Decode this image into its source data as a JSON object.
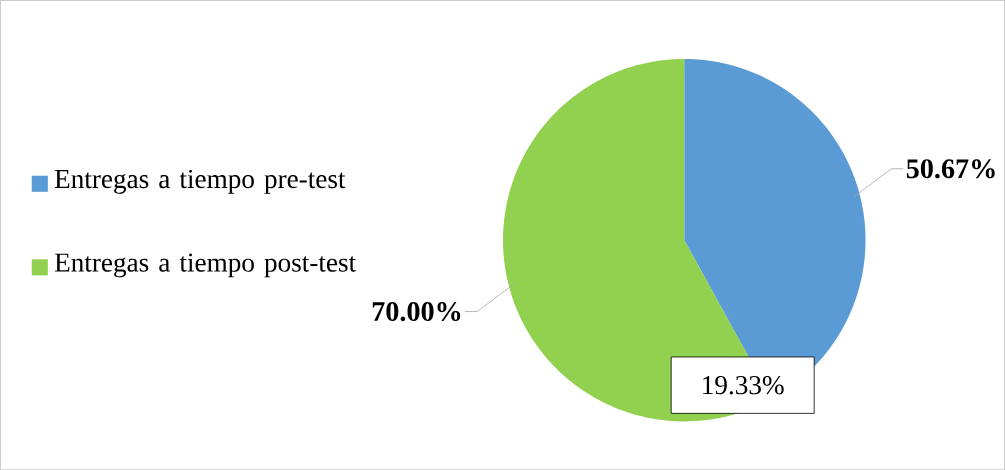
{
  "chart_data": {
    "type": "pie",
    "categories": [
      "Entregas a tiempo pre-test",
      "Entregas a tiempo post-test"
    ],
    "values": [
      50.67,
      70.0
    ],
    "colors": [
      "#5b9bd5",
      "#92d050"
    ],
    "value_labels": [
      "50.67%",
      "70.00%"
    ],
    "legend": "left",
    "annotations": [
      "19.33%"
    ]
  }
}
